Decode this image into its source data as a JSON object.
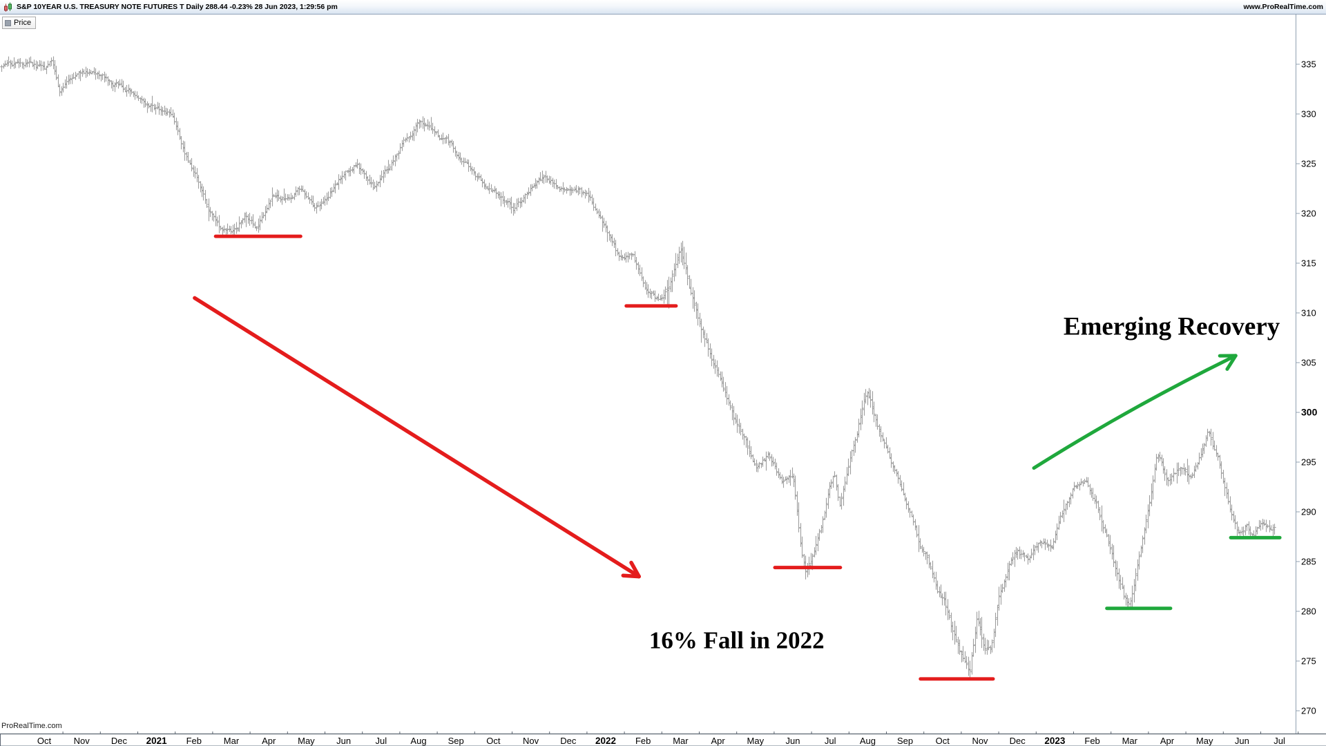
{
  "titlebar": {
    "title": "S&P 10YEAR U.S. TREASURY NOTE FUTURES T Daily 288.44 -0.23% 28 Jun 2023, 1:29:56 pm",
    "website": "www.ProRealTime.com"
  },
  "price_chip": {
    "label": "Price"
  },
  "watermark": "ProRealTime.com",
  "chart_data": {
    "type": "bar",
    "instrument": "S&P 10YEAR U.S. TREASURY NOTE FUTURES T",
    "timeframe": "Daily",
    "last_price": 288.44,
    "change_pct": "-0.23%",
    "as_of": "28 Jun 2023, 1:29:56 pm",
    "x_labels": [
      "Oct",
      "Nov",
      "Dec",
      "2021",
      "Feb",
      "Mar",
      "Apr",
      "May",
      "Jun",
      "Jul",
      "Aug",
      "Sep",
      "Oct",
      "Nov",
      "Dec",
      "2022",
      "Feb",
      "Mar",
      "Apr",
      "May",
      "Jun",
      "Jul",
      "Aug",
      "Sep",
      "Oct",
      "Nov",
      "Dec",
      "2023",
      "Feb",
      "Mar",
      "Apr",
      "May",
      "Jun",
      "Jul"
    ],
    "y_ticks": [
      270,
      275,
      280,
      285,
      290,
      295,
      300,
      305,
      310,
      315,
      320,
      325,
      330,
      335
    ],
    "y_bold_tick": 300,
    "ylim": [
      267.8,
      340.2
    ],
    "grid": "off",
    "bar_color": "#9d9d9d",
    "colors": {
      "red": "#e41c1c",
      "green": "#1fa83c"
    },
    "price_path": [
      [
        -1.14,
        334.6
      ],
      [
        0.0,
        334.3
      ],
      [
        0.2,
        335.2
      ],
      [
        0.4,
        332.4
      ],
      [
        1.0,
        334.6
      ],
      [
        1.5,
        334.2
      ],
      [
        2.1,
        333.0
      ],
      [
        2.55,
        332.4
      ],
      [
        3.05,
        330.9
      ],
      [
        3.45,
        329.8
      ],
      [
        3.72,
        326.2
      ],
      [
        4.08,
        324.0
      ],
      [
        4.4,
        320.4
      ],
      [
        4.76,
        318.4
      ],
      [
        5.0,
        317.9
      ],
      [
        5.37,
        319.8
      ],
      [
        5.7,
        318.5
      ],
      [
        6.1,
        321.8
      ],
      [
        6.5,
        321.2
      ],
      [
        6.85,
        322.6
      ],
      [
        7.25,
        320.4
      ],
      [
        7.6,
        322.0
      ],
      [
        8.05,
        324.3
      ],
      [
        8.35,
        325.2
      ],
      [
        8.8,
        322.8
      ],
      [
        9.2,
        324.5
      ],
      [
        9.65,
        327.5
      ],
      [
        10.0,
        329.6
      ],
      [
        10.3,
        328.8
      ],
      [
        10.7,
        327.3
      ],
      [
        11.2,
        325.2
      ],
      [
        11.65,
        323.4
      ],
      [
        12.1,
        322.0
      ],
      [
        12.55,
        320.6
      ],
      [
        13.0,
        322.6
      ],
      [
        13.4,
        324.0
      ],
      [
        13.8,
        322.6
      ],
      [
        14.25,
        322.6
      ],
      [
        14.6,
        321.3
      ],
      [
        15.0,
        318.3
      ],
      [
        15.35,
        315.3
      ],
      [
        15.7,
        315.8
      ],
      [
        16.05,
        312.6
      ],
      [
        16.45,
        311.2
      ],
      [
        16.7,
        312.8
      ],
      [
        17.0,
        316.5
      ],
      [
        17.3,
        311.8
      ],
      [
        17.55,
        308.0
      ],
      [
        17.85,
        305.2
      ],
      [
        18.15,
        302.0
      ],
      [
        18.45,
        299.2
      ],
      [
        18.75,
        296.8
      ],
      [
        19.0,
        294.2
      ],
      [
        19.35,
        295.6
      ],
      [
        19.7,
        293.2
      ],
      [
        20.0,
        293.8
      ],
      [
        20.22,
        286.5
      ],
      [
        20.35,
        284.3
      ],
      [
        20.55,
        286.0
      ],
      [
        20.75,
        288.5
      ],
      [
        20.95,
        292.0
      ],
      [
        21.1,
        293.6
      ],
      [
        21.25,
        290.8
      ],
      [
        21.5,
        295.2
      ],
      [
        21.75,
        299.2
      ],
      [
        21.97,
        302.6
      ],
      [
        22.2,
        299.8
      ],
      [
        22.5,
        295.8
      ],
      [
        22.85,
        292.4
      ],
      [
        23.1,
        289.6
      ],
      [
        23.35,
        286.6
      ],
      [
        23.62,
        284.6
      ],
      [
        23.85,
        282.0
      ],
      [
        24.05,
        281.0
      ],
      [
        24.3,
        277.5
      ],
      [
        24.55,
        275.0
      ],
      [
        24.72,
        273.8
      ],
      [
        24.92,
        279.5
      ],
      [
        25.12,
        276.2
      ],
      [
        25.3,
        276.8
      ],
      [
        25.5,
        281.5
      ],
      [
        25.75,
        284.5
      ],
      [
        26.0,
        285.8
      ],
      [
        26.3,
        284.8
      ],
      [
        26.6,
        286.6
      ],
      [
        26.9,
        286.2
      ],
      [
        27.2,
        289.6
      ],
      [
        27.5,
        292.0
      ],
      [
        27.8,
        293.0
      ],
      [
        28.1,
        290.8
      ],
      [
        28.4,
        287.4
      ],
      [
        28.65,
        283.8
      ],
      [
        28.85,
        281.2
      ],
      [
        29.0,
        280.3
      ],
      [
        29.25,
        285.5
      ],
      [
        29.5,
        291.0
      ],
      [
        29.72,
        296.2
      ],
      [
        30.0,
        293.6
      ],
      [
        30.35,
        294.6
      ],
      [
        30.65,
        293.4
      ],
      [
        30.9,
        296.0
      ],
      [
        31.1,
        298.2
      ],
      [
        31.4,
        294.6
      ],
      [
        31.65,
        290.6
      ],
      [
        31.88,
        287.8
      ],
      [
        32.1,
        288.8
      ],
      [
        32.3,
        287.9
      ],
      [
        32.55,
        289.2
      ],
      [
        32.75,
        288.2
      ],
      [
        32.86,
        288.4
      ]
    ],
    "annotations": {
      "support_lines": [
        {
          "color": "red",
          "m1": 4.58,
          "m2": 6.85,
          "price": 317.7
        },
        {
          "color": "red",
          "m1": 15.55,
          "m2": 16.88,
          "price": 310.7
        },
        {
          "color": "red",
          "m1": 19.52,
          "m2": 21.27,
          "price": 284.4
        },
        {
          "color": "red",
          "m1": 23.41,
          "m2": 25.35,
          "price": 273.2
        },
        {
          "color": "green",
          "m1": 28.39,
          "m2": 30.09,
          "price": 280.3
        },
        {
          "color": "green",
          "m1": 31.7,
          "m2": 33.01,
          "price": 287.4
        }
      ],
      "arrows": [
        {
          "color": "red",
          "head": "open",
          "m1": 4.02,
          "p1": 311.5,
          "m2": 15.89,
          "p2": 283.5,
          "bow": 0
        },
        {
          "color": "green",
          "head": "open",
          "m1": 26.44,
          "p1": 294.4,
          "m2": 31.83,
          "p2": 305.7,
          "bow": -9
        }
      ],
      "labels": [
        {
          "text": "16% Fall in 2022",
          "m": 16.16,
          "price": 276.3,
          "size": 35
        },
        {
          "text": "Emerging Recovery",
          "m": 27.23,
          "price": 307.8,
          "size": 37
        }
      ]
    }
  }
}
